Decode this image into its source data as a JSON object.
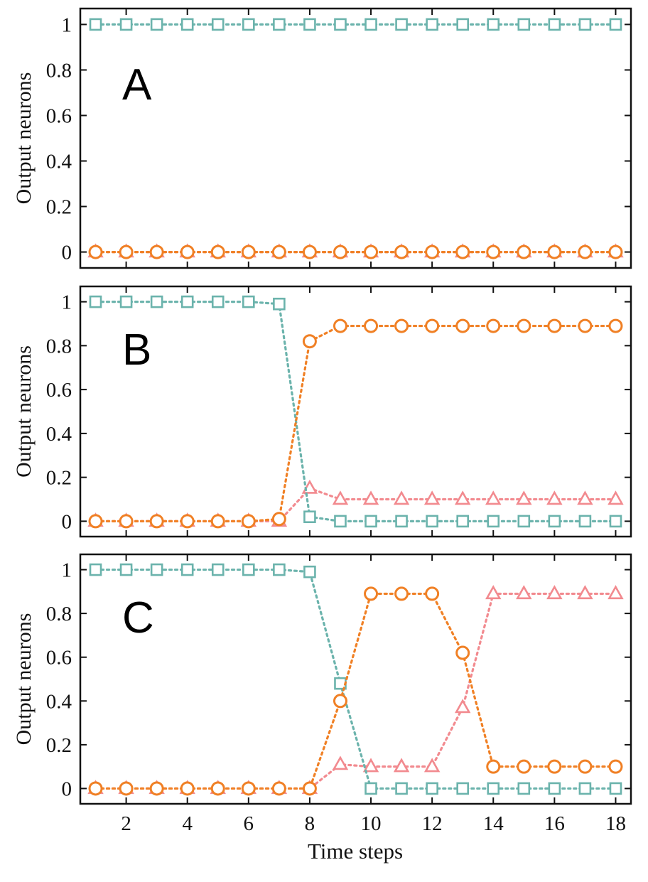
{
  "figure": {
    "xlabel": "Time steps",
    "colors": {
      "teal": "#6bb3ac",
      "orange": "#f08025",
      "pink": "#f28a8f",
      "axis": "#111111"
    }
  },
  "chart_data": [
    {
      "type": "line",
      "panel_label": "A",
      "ylabel": "Output neurons",
      "xlabel": "",
      "xlim": [
        0.5,
        18.5
      ],
      "ylim": [
        -0.07,
        1.07
      ],
      "xticks": [
        2,
        4,
        6,
        8,
        10,
        12,
        14,
        16,
        18
      ],
      "yticks": [
        0,
        0.2,
        0.4,
        0.6,
        0.8,
        1
      ],
      "ytick_labels": [
        "0",
        "0.2",
        "0.4",
        "0.6",
        "0.8",
        "1"
      ],
      "show_xtick_labels": false,
      "x": [
        1,
        2,
        3,
        4,
        5,
        6,
        7,
        8,
        9,
        10,
        11,
        12,
        13,
        14,
        15,
        16,
        17,
        18
      ],
      "series": [
        {
          "name": "triangle",
          "marker": "triangle",
          "color": "#f28a8f",
          "values": [
            0,
            0,
            0,
            0,
            0,
            0,
            0,
            0,
            0,
            0,
            0,
            0,
            0,
            0,
            0,
            0,
            0,
            0
          ]
        },
        {
          "name": "square",
          "marker": "square",
          "color": "#6bb3ac",
          "values": [
            1,
            1,
            1,
            1,
            1,
            1,
            1,
            1,
            1,
            1,
            1,
            1,
            1,
            1,
            1,
            1,
            1,
            1
          ]
        },
        {
          "name": "circle",
          "marker": "circle",
          "color": "#f08025",
          "values": [
            0,
            0,
            0,
            0,
            0,
            0,
            0,
            0,
            0,
            0,
            0,
            0,
            0,
            0,
            0,
            0,
            0,
            0
          ]
        }
      ]
    },
    {
      "type": "line",
      "panel_label": "B",
      "ylabel": "Output neurons",
      "xlabel": "",
      "xlim": [
        0.5,
        18.5
      ],
      "ylim": [
        -0.07,
        1.07
      ],
      "xticks": [
        2,
        4,
        6,
        8,
        10,
        12,
        14,
        16,
        18
      ],
      "yticks": [
        0,
        0.2,
        0.4,
        0.6,
        0.8,
        1
      ],
      "ytick_labels": [
        "0",
        "0.2",
        "0.4",
        "0.6",
        "0.8",
        "1"
      ],
      "show_xtick_labels": false,
      "x": [
        1,
        2,
        3,
        4,
        5,
        6,
        7,
        8,
        9,
        10,
        11,
        12,
        13,
        14,
        15,
        16,
        17,
        18
      ],
      "series": [
        {
          "name": "triangle",
          "marker": "triangle",
          "color": "#f28a8f",
          "values": [
            0,
            0,
            0,
            0,
            0,
            0,
            0,
            0.15,
            0.1,
            0.1,
            0.1,
            0.1,
            0.1,
            0.1,
            0.1,
            0.1,
            0.1,
            0.1
          ]
        },
        {
          "name": "square",
          "marker": "square",
          "color": "#6bb3ac",
          "values": [
            1,
            1,
            1,
            1,
            1,
            1,
            0.99,
            0.02,
            0,
            0,
            0,
            0,
            0,
            0,
            0,
            0,
            0,
            0
          ]
        },
        {
          "name": "circle",
          "marker": "circle",
          "color": "#f08025",
          "values": [
            0,
            0,
            0,
            0,
            0,
            0,
            0.01,
            0.82,
            0.89,
            0.89,
            0.89,
            0.89,
            0.89,
            0.89,
            0.89,
            0.89,
            0.89,
            0.89
          ]
        }
      ]
    },
    {
      "type": "line",
      "panel_label": "C",
      "ylabel": "Output neurons",
      "xlabel": "Time steps",
      "xlim": [
        0.5,
        18.5
      ],
      "ylim": [
        -0.07,
        1.07
      ],
      "xticks": [
        2,
        4,
        6,
        8,
        10,
        12,
        14,
        16,
        18
      ],
      "yticks": [
        0,
        0.2,
        0.4,
        0.6,
        0.8,
        1
      ],
      "ytick_labels": [
        "0",
        "0.2",
        "0.4",
        "0.6",
        "0.8",
        "1"
      ],
      "show_xtick_labels": true,
      "x": [
        1,
        2,
        3,
        4,
        5,
        6,
        7,
        8,
        9,
        10,
        11,
        12,
        13,
        14,
        15,
        16,
        17,
        18
      ],
      "series": [
        {
          "name": "triangle",
          "marker": "triangle",
          "color": "#f28a8f",
          "values": [
            0,
            0,
            0,
            0,
            0,
            0,
            0,
            0,
            0.11,
            0.1,
            0.1,
            0.1,
            0.37,
            0.89,
            0.89,
            0.89,
            0.89,
            0.89
          ]
        },
        {
          "name": "square",
          "marker": "square",
          "color": "#6bb3ac",
          "values": [
            1,
            1,
            1,
            1,
            1,
            1,
            1,
            0.99,
            0.48,
            0,
            0,
            0,
            0,
            0,
            0,
            0,
            0,
            0
          ]
        },
        {
          "name": "circle",
          "marker": "circle",
          "color": "#f08025",
          "values": [
            0,
            0,
            0,
            0,
            0,
            0,
            0,
            0,
            0.4,
            0.89,
            0.89,
            0.89,
            0.62,
            0.1,
            0.1,
            0.1,
            0.1,
            0.1
          ]
        }
      ]
    }
  ]
}
